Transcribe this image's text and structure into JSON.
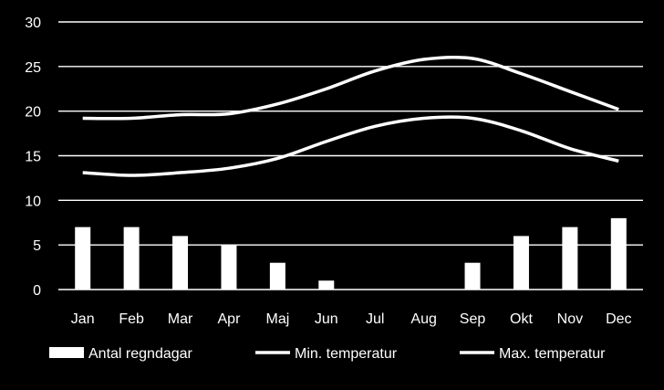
{
  "chart_data": {
    "type": "bar",
    "categories": [
      "Jan",
      "Feb",
      "Mar",
      "Apr",
      "Maj",
      "Jun",
      "Jul",
      "Aug",
      "Sep",
      "Okt",
      "Nov",
      "Dec"
    ],
    "series": [
      {
        "name": "Antal regndagar",
        "type": "bar",
        "values": [
          7,
          7,
          6,
          5,
          3,
          1,
          0,
          0,
          3,
          6,
          7,
          8
        ]
      },
      {
        "name": "Min. temperatur",
        "type": "line",
        "values": [
          13.1,
          12.8,
          13.1,
          13.6,
          14.7,
          16.6,
          18.3,
          19.2,
          19.2,
          17.8,
          15.8,
          14.4
        ]
      },
      {
        "name": "Max. temperatur",
        "type": "line",
        "values": [
          19.2,
          19.2,
          19.6,
          19.7,
          20.8,
          22.5,
          24.5,
          25.8,
          25.9,
          24.2,
          22.2,
          20.2
        ]
      }
    ],
    "yticks": [
      "0",
      "5",
      "10",
      "15",
      "20",
      "25",
      "30"
    ],
    "ylim": [
      0,
      30
    ],
    "grid": true,
    "legend": "bottom",
    "colors": {
      "background": "#000000",
      "bars": "#ffffff",
      "lines": "#ffffff",
      "grid": "#ffffff",
      "text": "#ffffff"
    }
  }
}
